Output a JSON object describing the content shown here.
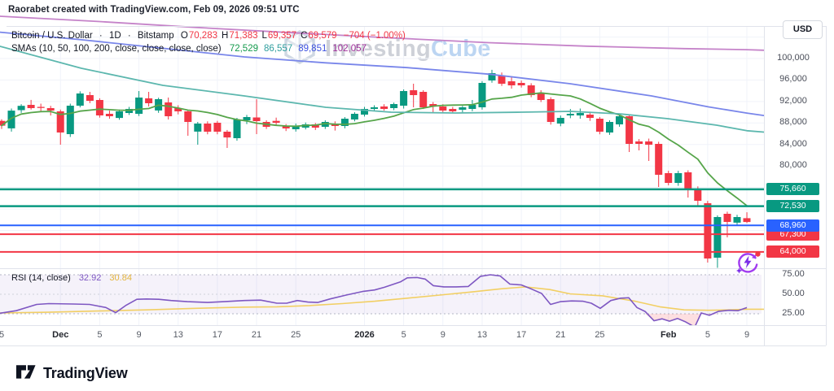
{
  "meta": {
    "attribution": "Raorabet created with TradingView.com, Feb 09, 2026 09:51 UTC"
  },
  "watermark": {
    "text_primary": "Investing",
    "text_secondary": "Cube"
  },
  "legend": {
    "title": "Bitcoin / U.S. Dollar",
    "separator": "·",
    "interval": "1D",
    "exchange": "Bitstamp",
    "ohlc": [
      {
        "k": "O",
        "v": "70,283"
      },
      {
        "k": "H",
        "v": "71,383"
      },
      {
        "k": "L",
        "v": "69,357"
      },
      {
        "k": "C",
        "v": "69,579"
      }
    ],
    "change": "−704 (−1.00%)",
    "sma_label": "SMAs (10, 50, 100, 200, close, close, close, close)",
    "sma_values": [
      {
        "v": "72,529",
        "color": "#149a4c"
      },
      {
        "v": "86,557",
        "color": "#2f9e9e"
      },
      {
        "v": "89,851",
        "color": "#3d51e0"
      },
      {
        "v": "102,057",
        "color": "#a02d9a"
      }
    ]
  },
  "price_axis": {
    "currency": "USD",
    "ticks": [
      {
        "label": "100,000",
        "price": 100000
      },
      {
        "label": "96,000",
        "price": 96000
      },
      {
        "label": "92,000",
        "price": 92000
      },
      {
        "label": "88,000",
        "price": 88000
      },
      {
        "label": "84,000",
        "price": 84000
      },
      {
        "label": "80,000",
        "price": 80000
      }
    ]
  },
  "time_axis": {
    "labels": [
      {
        "t": "5",
        "i": 0,
        "m": false
      },
      {
        "t": "Dec",
        "i": 6,
        "m": true
      },
      {
        "t": "5",
        "i": 10,
        "m": false
      },
      {
        "t": "9",
        "i": 14,
        "m": false
      },
      {
        "t": "13",
        "i": 18,
        "m": false
      },
      {
        "t": "17",
        "i": 22,
        "m": false
      },
      {
        "t": "21",
        "i": 26,
        "m": false
      },
      {
        "t": "25",
        "i": 30,
        "m": false
      },
      {
        "t": "2026",
        "i": 37,
        "m": true
      },
      {
        "t": "5",
        "i": 41,
        "m": false
      },
      {
        "t": "9",
        "i": 45,
        "m": false
      },
      {
        "t": "13",
        "i": 49,
        "m": false
      },
      {
        "t": "17",
        "i": 53,
        "m": false
      },
      {
        "t": "21",
        "i": 57,
        "m": false
      },
      {
        "t": "25",
        "i": 61,
        "m": false
      },
      {
        "t": "Feb",
        "i": 68,
        "m": true
      },
      {
        "t": "5",
        "i": 72,
        "m": false
      },
      {
        "t": "9",
        "i": 76,
        "m": false
      }
    ]
  },
  "rsi_pane": {
    "legend_label": "RSI (14, close)",
    "value_main": "32.92",
    "value_signal": "30.84",
    "ticks": [
      {
        "label": "75.00",
        "value": 75
      },
      {
        "label": "50.00",
        "value": 50
      },
      {
        "label": "25.00",
        "value": 25
      }
    ]
  },
  "footer": {
    "brand": "TradingView"
  },
  "chart_data": {
    "type": "candlestick",
    "title": "Bitcoin / U.S. Dollar · 1D · Bitstamp",
    "x_unit": "day",
    "ylim": [
      60500,
      108500
    ],
    "grid": {
      "h_prices": [
        104000,
        100000,
        96000,
        92000,
        88000,
        84000,
        80000,
        76000,
        72000,
        68000,
        64000
      ]
    },
    "colors": {
      "up": "#089981",
      "down": "#f23645",
      "grid": "#f0f3fa",
      "sma10": "#56a54a",
      "sma50": "#5cb7ae",
      "sma100": "#7986ea",
      "sma200": "#c583c9",
      "rsi": "#7e57c2",
      "rsi_signal": "#f2cf63",
      "band": "rgba(126,87,194,0.08)",
      "band_edge": "#b3b5c4",
      "band_mid": "#cfd1da",
      "oversold_fill": "rgba(242,54,69,0.16)"
    },
    "candles": [
      [
        "Nov 25",
        88400,
        88700,
        86900,
        87500
      ],
      [
        "Nov 26",
        87000,
        90700,
        86400,
        90300
      ],
      [
        "Nov 27",
        90400,
        91500,
        89900,
        91200
      ],
      [
        "Nov 28",
        91380,
        92300,
        90500,
        90770
      ],
      [
        "Nov 29",
        91000,
        91600,
        90200,
        90800
      ],
      [
        "Nov 30",
        90770,
        91200,
        89400,
        90320
      ],
      [
        "Dec 1",
        90170,
        90500,
        83960,
        86230
      ],
      [
        "Dec 2",
        85930,
        91600,
        85400,
        91220
      ],
      [
        "Dec 3",
        91220,
        93900,
        90900,
        93490
      ],
      [
        "Dec 4",
        93190,
        93800,
        91700,
        92130
      ],
      [
        "Dec 5",
        92280,
        92600,
        89000,
        89410
      ],
      [
        "Dec 6",
        89710,
        90300,
        88800,
        89260
      ],
      [
        "Dec 7",
        88950,
        90500,
        88600,
        90170
      ],
      [
        "Dec 8",
        89860,
        91000,
        89500,
        90620
      ],
      [
        "Dec 9",
        89710,
        93950,
        89300,
        92740
      ],
      [
        "Dec 10",
        92590,
        93800,
        91080,
        91680
      ],
      [
        "Dec 11",
        90320,
        92700,
        89900,
        92430
      ],
      [
        "Dec 12",
        91830,
        92740,
        88650,
        89260
      ],
      [
        "Dec 13",
        90770,
        91300,
        89600,
        90170
      ],
      [
        "Dec 14",
        90170,
        90400,
        85630,
        88200
      ],
      [
        "Dec 15",
        86390,
        88200,
        83960,
        87890
      ],
      [
        "Dec 16",
        87900,
        88300,
        85900,
        86390
      ],
      [
        "Dec 17",
        88050,
        88400,
        85900,
        86390
      ],
      [
        "Dec 18",
        86390,
        86700,
        83350,
        85320
      ],
      [
        "Dec 19",
        85170,
        88950,
        84700,
        88650
      ],
      [
        "Dec 20",
        88500,
        89500,
        87800,
        89100
      ],
      [
        "Dec 21",
        89030,
        92440,
        85930,
        88350
      ],
      [
        "Dec 22",
        88200,
        88500,
        86900,
        87290
      ],
      [
        "Dec 23",
        88400,
        89000,
        87500,
        88050
      ],
      [
        "Dec 24",
        87440,
        87800,
        86500,
        86990
      ],
      [
        "Dec 25",
        86840,
        87900,
        86400,
        87440
      ],
      [
        "Dec 26",
        87140,
        88100,
        86800,
        87740
      ],
      [
        "Dec 27",
        87740,
        88000,
        86700,
        87140
      ],
      [
        "Dec 28",
        87290,
        88500,
        86900,
        88200
      ],
      [
        "Dec 29",
        87890,
        88300,
        86600,
        87440
      ],
      [
        "Dec 30",
        87440,
        89100,
        87000,
        88800
      ],
      [
        "Dec 31",
        88650,
        90000,
        88300,
        89710
      ],
      [
        "Jan 1",
        89560,
        91000,
        89200,
        90620
      ],
      [
        "Jan 2",
        90620,
        91300,
        90200,
        90920
      ],
      [
        "Jan 3",
        91070,
        91500,
        90300,
        90620
      ],
      [
        "Jan 4",
        90770,
        91800,
        90400,
        91530
      ],
      [
        "Jan 5",
        91220,
        94250,
        90700,
        93950
      ],
      [
        "Jan 6",
        94100,
        95310,
        90920,
        93190
      ],
      [
        "Jan 7",
        93800,
        94100,
        90600,
        90920
      ],
      [
        "Jan 8",
        91530,
        91900,
        90010,
        91070
      ],
      [
        "Jan 9",
        91070,
        91500,
        89900,
        90320
      ],
      [
        "Jan 10",
        90620,
        91000,
        89800,
        90170
      ],
      [
        "Jan 11",
        90470,
        91200,
        90000,
        90920
      ],
      [
        "Jan 12",
        90620,
        92280,
        90200,
        91380
      ],
      [
        "Jan 13",
        90920,
        95800,
        90500,
        95460
      ],
      [
        "Jan 14",
        95920,
        97890,
        95500,
        97280
      ],
      [
        "Jan 15",
        96830,
        97400,
        94900,
        95310
      ],
      [
        "Jan 16",
        95760,
        96700,
        94400,
        95010
      ],
      [
        "Jan 17",
        95460,
        95900,
        94600,
        95010
      ],
      [
        "Jan 18",
        95010,
        95400,
        92800,
        93190
      ],
      [
        "Jan 19",
        93640,
        94100,
        91900,
        92280
      ],
      [
        "Jan 20",
        92430,
        92800,
        87700,
        88200
      ],
      [
        "Jan 21",
        87890,
        89400,
        87400,
        88950
      ],
      [
        "Jan 22",
        89410,
        90600,
        88900,
        89710
      ],
      [
        "Jan 23",
        89410,
        90700,
        88800,
        89860
      ],
      [
        "Jan 24",
        89560,
        90100,
        88400,
        88950
      ],
      [
        "Jan 25",
        88800,
        89100,
        85900,
        86380
      ],
      [
        "Jan 26",
        86230,
        88500,
        85800,
        88200
      ],
      [
        "Jan 27",
        87740,
        89500,
        87300,
        89260
      ],
      [
        "Jan 28",
        89260,
        89600,
        82600,
        84110
      ],
      [
        "Jan 29",
        84570,
        85000,
        82900,
        84110
      ],
      [
        "Jan 30",
        84570,
        85100,
        80940,
        83960
      ],
      [
        "Jan 31",
        84110,
        84500,
        76100,
        78360
      ],
      [
        "Feb 1",
        78670,
        79100,
        76400,
        76850
      ],
      [
        "Feb 2",
        76850,
        79100,
        76300,
        78670
      ],
      [
        "Feb 3",
        78820,
        79200,
        74130,
        75640
      ],
      [
        "Feb 4",
        75790,
        76200,
        72620,
        73520
      ],
      [
        "Feb 5",
        73070,
        73500,
        62020,
        62780
      ],
      [
        "Feb 6",
        62930,
        70800,
        60960,
        70490
      ],
      [
        "Feb 7",
        71100,
        71500,
        66710,
        69590
      ],
      [
        "Feb 8",
        69440,
        70900,
        69000,
        70490
      ],
      [
        "Feb 9",
        70283,
        71383,
        69357,
        69579
      ]
    ],
    "overlays": [
      {
        "name": "SMA 10",
        "current": 72529,
        "compute": "sma_close_10"
      },
      {
        "name": "SMA 50",
        "current": 86557,
        "points": [
          [
            0,
            102270
          ],
          [
            100,
            98180
          ],
          [
            200,
            95010
          ],
          [
            300,
            93040
          ],
          [
            400,
            90920
          ],
          [
            480,
            90010
          ],
          [
            560,
            89860
          ],
          [
            640,
            90010
          ],
          [
            700,
            90160
          ],
          [
            760,
            89710
          ],
          [
            820,
            88800
          ],
          [
            880,
            87600
          ],
          [
            917,
            86557
          ],
          [
            938,
            86300
          ]
        ]
      },
      {
        "name": "SMA 100",
        "current": 89851,
        "points": [
          [
            0,
            104900
          ],
          [
            100,
            103500
          ],
          [
            200,
            101900
          ],
          [
            300,
            100300
          ],
          [
            400,
            99200
          ],
          [
            500,
            98300
          ],
          [
            600,
            97100
          ],
          [
            700,
            95310
          ],
          [
            800,
            93040
          ],
          [
            870,
            91000
          ],
          [
            917,
            89851
          ],
          [
            938,
            89400
          ]
        ]
      },
      {
        "name": "SMA 200",
        "current": 102057,
        "points": [
          [
            0,
            107870
          ],
          [
            120,
            106900
          ],
          [
            240,
            105800
          ],
          [
            360,
            104800
          ],
          [
            480,
            103850
          ],
          [
            600,
            102950
          ],
          [
            720,
            102300
          ],
          [
            840,
            101850
          ],
          [
            917,
            101650
          ],
          [
            938,
            101550
          ]
        ]
      }
    ],
    "levels": [
      {
        "label": "75,660",
        "price": 75660,
        "color": "#089981",
        "lw": 2.5,
        "z": 1
      },
      {
        "label": "72,530",
        "price": 72530,
        "color": "#089981",
        "lw": 2.5,
        "z": 1
      },
      {
        "label": "68,960",
        "price": 68960,
        "color": "#2962ff",
        "lw": 2,
        "z": 3
      },
      {
        "label": "67,300",
        "price": 67300,
        "color": "#f23645",
        "lw": 2,
        "z": 1
      },
      {
        "label": "64,000",
        "price": 64000,
        "color": "#f23645",
        "lw": 2,
        "z": 1
      }
    ],
    "rsi": {
      "period": 14,
      "overbought": 75,
      "oversold": 25,
      "current_main": 32.92,
      "current_signal": 30.84,
      "series_main": [
        [
          0,
          25.7
        ],
        [
          20,
          29
        ],
        [
          45,
          37
        ],
        [
          60,
          38
        ],
        [
          90,
          37.5
        ],
        [
          110,
          37
        ],
        [
          130,
          33
        ],
        [
          142,
          26.5
        ],
        [
          155,
          36
        ],
        [
          168,
          43.5
        ],
        [
          180,
          44
        ],
        [
          195,
          43.5
        ],
        [
          210,
          42
        ],
        [
          230,
          40.5
        ],
        [
          255,
          39.5
        ],
        [
          275,
          40.5
        ],
        [
          300,
          42
        ],
        [
          320,
          42.5
        ],
        [
          340,
          38.5
        ],
        [
          352,
          38.5
        ],
        [
          365,
          42
        ],
        [
          378,
          40
        ],
        [
          390,
          39.5
        ],
        [
          405,
          44
        ],
        [
          425,
          49
        ],
        [
          445,
          53.5
        ],
        [
          460,
          55.5
        ],
        [
          472,
          59
        ],
        [
          482,
          62.5
        ],
        [
          492,
          66
        ],
        [
          500,
          71
        ],
        [
          512,
          71.5
        ],
        [
          522,
          69.5
        ],
        [
          532,
          61
        ],
        [
          545,
          59.5
        ],
        [
          560,
          59.5
        ],
        [
          575,
          60
        ],
        [
          590,
          73
        ],
        [
          602,
          75
        ],
        [
          614,
          73.5
        ],
        [
          626,
          63
        ],
        [
          640,
          62
        ],
        [
          652,
          57
        ],
        [
          665,
          51
        ],
        [
          676,
          37
        ],
        [
          688,
          40.5
        ],
        [
          702,
          41.5
        ],
        [
          716,
          41
        ],
        [
          726,
          38.5
        ],
        [
          737,
          32
        ],
        [
          750,
          42
        ],
        [
          762,
          45
        ],
        [
          772,
          45.5
        ],
        [
          782,
          33
        ],
        [
          792,
          28
        ],
        [
          803,
          16
        ],
        [
          813,
          18.5
        ],
        [
          822,
          15.5
        ],
        [
          832,
          19
        ],
        [
          841,
          15
        ],
        [
          853,
          8
        ],
        [
          861,
          26
        ],
        [
          871,
          23
        ],
        [
          882,
          28
        ],
        [
          895,
          29.5
        ],
        [
          906,
          29
        ],
        [
          917,
          32.92
        ]
      ],
      "series_signal": [
        [
          0,
          26
        ],
        [
          60,
          27
        ],
        [
          120,
          28.5
        ],
        [
          180,
          30
        ],
        [
          240,
          32
        ],
        [
          300,
          33.5
        ],
        [
          340,
          34
        ],
        [
          380,
          35.5
        ],
        [
          420,
          38
        ],
        [
          460,
          41
        ],
        [
          500,
          45
        ],
        [
          540,
          49
        ],
        [
          580,
          53
        ],
        [
          615,
          57
        ],
        [
          645,
          59.5
        ],
        [
          675,
          56
        ],
        [
          700,
          50.5
        ],
        [
          740,
          48
        ],
        [
          780,
          41
        ],
        [
          810,
          34
        ],
        [
          840,
          30
        ],
        [
          870,
          29.5
        ],
        [
          895,
          30
        ],
        [
          917,
          30.84
        ],
        [
          938,
          30.8
        ]
      ]
    }
  }
}
